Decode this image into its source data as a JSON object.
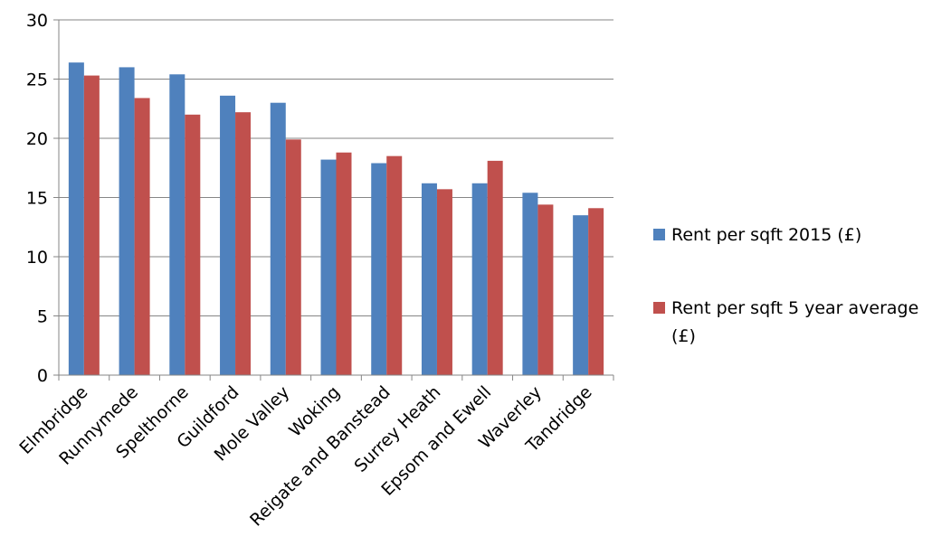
{
  "chart_data": {
    "type": "bar",
    "title": "",
    "xlabel": "",
    "ylabel": "",
    "ylim": [
      0,
      30
    ],
    "yticks": [
      0,
      5,
      10,
      15,
      20,
      25,
      30
    ],
    "grid": true,
    "legend_position": "right",
    "categories": [
      "Elmbridge",
      "Runnymede",
      "Spelthorne",
      "Guildford",
      "Mole Valley",
      "Woking",
      "Reigate and Banstead",
      "Surrey Heath",
      "Epsom and Ewell",
      "Waverley",
      "Tandridge"
    ],
    "series": [
      {
        "name": "Rent per sqft 2015 (£)",
        "color": "#4F81BD",
        "values": [
          26.4,
          26.0,
          25.4,
          23.6,
          23.0,
          18.2,
          17.9,
          16.2,
          16.2,
          15.4,
          13.5
        ]
      },
      {
        "name": "Rent per sqft 5 year average (£)",
        "color": "#C0504D",
        "values": [
          25.3,
          23.4,
          22.0,
          22.2,
          19.9,
          18.8,
          18.5,
          15.7,
          18.1,
          14.4,
          14.1
        ]
      }
    ]
  },
  "legend": {
    "item1_line1": "Rent per sqft 2015 (£)",
    "item2_line1": "Rent per sqft 5 year average",
    "item2_line2": "(£)"
  }
}
